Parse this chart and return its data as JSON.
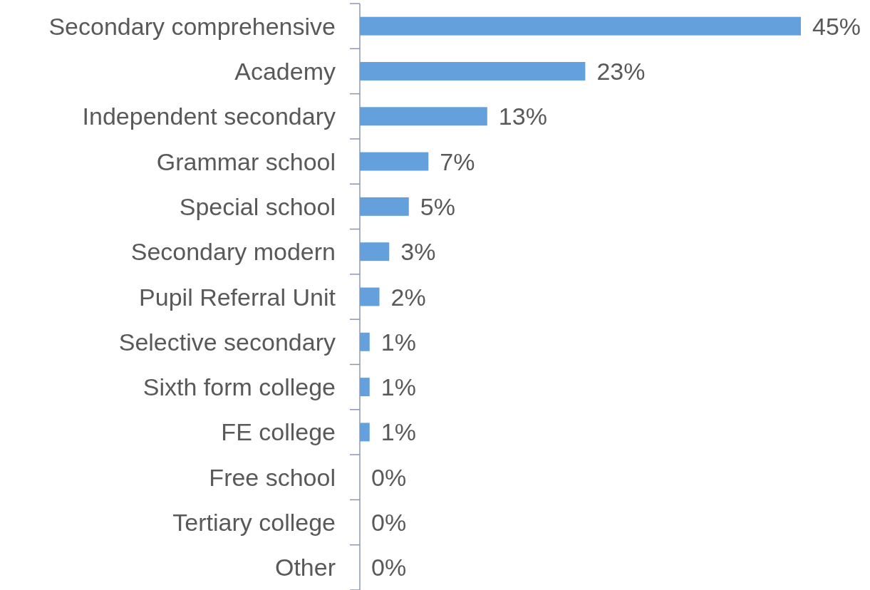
{
  "chart_data": {
    "type": "bar",
    "orientation": "horizontal",
    "categories": [
      "Secondary comprehensive",
      "Academy",
      "Independent secondary",
      "Grammar school",
      "Special school",
      "Secondary modern",
      "Pupil Referral Unit",
      "Selective secondary",
      "Sixth form college",
      "FE college",
      "Free school",
      "Tertiary college",
      "Other"
    ],
    "values": [
      45,
      23,
      13,
      7,
      5,
      3,
      2,
      1,
      1,
      1,
      0,
      0,
      0
    ],
    "value_labels": [
      "45%",
      "23%",
      "13%",
      "7%",
      "5%",
      "3%",
      "2%",
      "1%",
      "1%",
      "1%",
      "0%",
      "0%",
      "0%"
    ],
    "color": "#63a0dc"
  }
}
